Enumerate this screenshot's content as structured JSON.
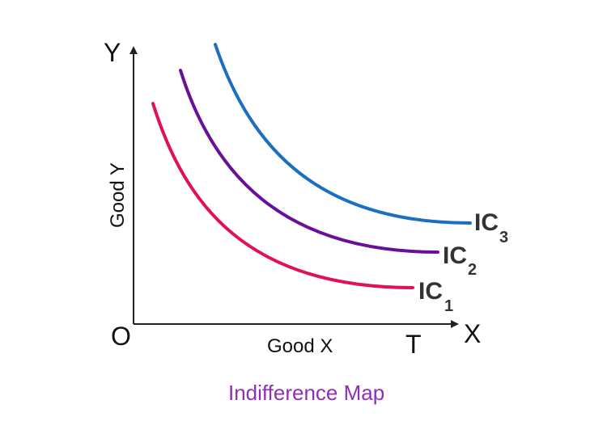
{
  "diagram": {
    "caption": "Indifference Map",
    "axes": {
      "y_letter": "Y",
      "x_letter": "X",
      "origin_label": "O",
      "x_end_label": "T",
      "x_title": "Good X",
      "y_title": "Good Y"
    },
    "curves": [
      {
        "main": "IC",
        "sub": "1",
        "color": "#e0105a"
      },
      {
        "main": "IC",
        "sub": "2",
        "color": "#6a0f9a"
      },
      {
        "main": "IC",
        "sub": "3",
        "color": "#1a6fc0"
      }
    ],
    "colors": {
      "axis": "#222222",
      "caption": "#8e2fb5",
      "label": "#333333"
    }
  }
}
